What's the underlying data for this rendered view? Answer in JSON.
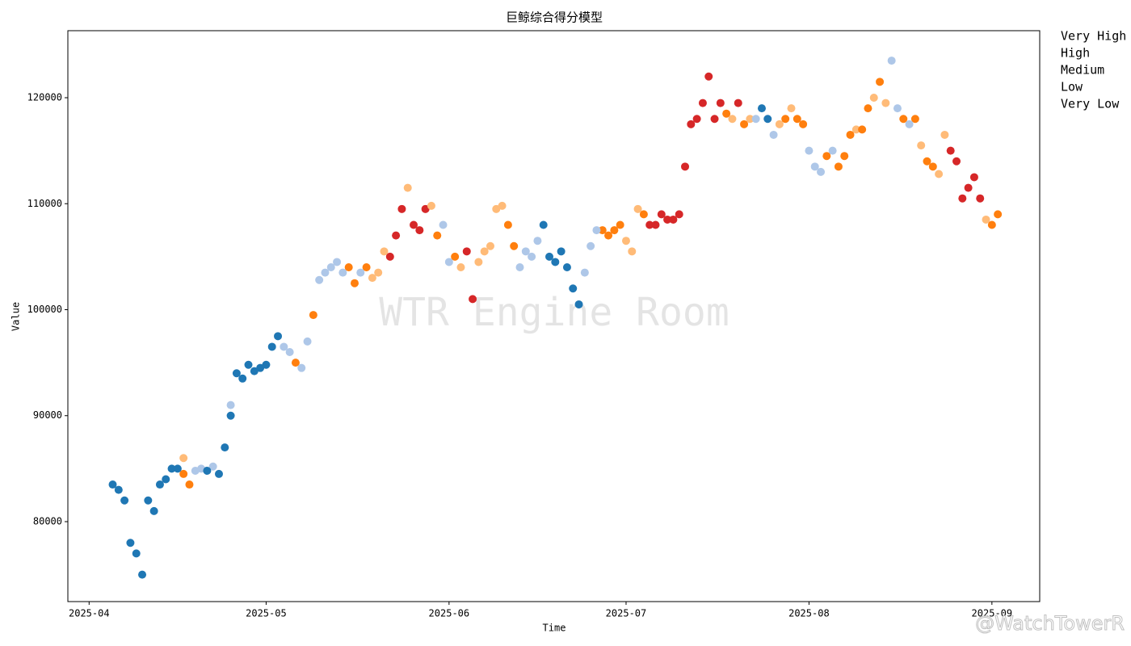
{
  "chart_data": {
    "type": "scatter",
    "title": "巨鲸综合得分模型",
    "xlabel": "Time",
    "ylabel": "Value",
    "annotations": [
      "WTR Engine Room",
      "@WatchTowerR"
    ],
    "xlim": [
      20175.4,
      20340.1
    ],
    "ylim": [
      72457,
      126324
    ],
    "xticks": [
      {
        "value": 20179,
        "label": "2025-04"
      },
      {
        "value": 20209,
        "label": "2025-05"
      },
      {
        "value": 20240,
        "label": "2025-06"
      },
      {
        "value": 20270,
        "label": "2025-07"
      },
      {
        "value": 20301,
        "label": "2025-08"
      },
      {
        "value": 20332,
        "label": "2025-09"
      }
    ],
    "yticks": [
      80000,
      90000,
      100000,
      110000,
      120000
    ],
    "grid": false,
    "legend": "outside right",
    "series": [
      {
        "name": "Very High",
        "color": "#d62728",
        "x": [
          20230,
          20231,
          20232,
          20234,
          20235,
          20236,
          20243,
          20244,
          20274,
          20275,
          20276,
          20277,
          20278,
          20279,
          20280,
          20281,
          20282,
          20283,
          20284,
          20285,
          20286,
          20289,
          20325,
          20326,
          20327,
          20328,
          20329,
          20330
        ],
        "values": [
          105000,
          107000,
          109500,
          108000,
          107500,
          109500,
          105500,
          101000,
          108000,
          108000,
          109000,
          108500,
          108500,
          109000,
          113500,
          117500,
          118000,
          119500,
          122000,
          118000,
          119500,
          119500,
          115000,
          114000,
          110500,
          111500,
          112500,
          110500
        ]
      },
      {
        "name": "High",
        "color": "#ffbb78",
        "x": [
          20195,
          20227,
          20228,
          20229,
          20233,
          20237,
          20242,
          20245,
          20246,
          20247,
          20248,
          20249,
          20270,
          20271,
          20272,
          20288,
          20291,
          20296,
          20298,
          20309,
          20312,
          20314,
          20320,
          20323,
          20324,
          20331
        ],
        "values": [
          86000,
          103000,
          103500,
          105500,
          111500,
          109800,
          104000,
          104500,
          105500,
          106000,
          109500,
          109800,
          106500,
          105500,
          109500,
          118000,
          118000,
          117500,
          119000,
          117000,
          120000,
          119500,
          115500,
          112800,
          116500,
          108500
        ]
      },
      {
        "name": "Medium",
        "color": "#ff7f0e",
        "x": [
          20195,
          20196,
          20214,
          20217,
          20223,
          20224,
          20226,
          20238,
          20241,
          20250,
          20251,
          20266,
          20267,
          20268,
          20269,
          20273,
          20287,
          20290,
          20297,
          20299,
          20300,
          20304,
          20306,
          20307,
          20308,
          20310,
          20311,
          20313,
          20317,
          20319,
          20321,
          20322,
          20332,
          20333
        ],
        "values": [
          84500,
          83500,
          95000,
          99500,
          104000,
          102500,
          104000,
          107000,
          105000,
          108000,
          106000,
          107500,
          107000,
          107500,
          108000,
          109000,
          118500,
          117500,
          118000,
          118000,
          117500,
          114500,
          113500,
          114500,
          116500,
          117000,
          119000,
          121500,
          118000,
          118000,
          114000,
          113500,
          108000,
          109000
        ]
      },
      {
        "name": "Low",
        "color": "#aec7e8",
        "x": [
          20197,
          20198,
          20200,
          20203,
          20212,
          20213,
          20215,
          20216,
          20218,
          20219,
          20220,
          20221,
          20222,
          20225,
          20239,
          20240,
          20252,
          20253,
          20254,
          20255,
          20263,
          20264,
          20265,
          20292,
          20295,
          20301,
          20302,
          20303,
          20305,
          20315,
          20316,
          20318
        ],
        "values": [
          84800,
          85000,
          85200,
          91000,
          96500,
          96000,
          94500,
          97000,
          102800,
          103500,
          104000,
          104500,
          103500,
          103500,
          108000,
          104500,
          104000,
          105500,
          105000,
          106500,
          103500,
          106000,
          107500,
          118000,
          116500,
          115000,
          113500,
          113000,
          115000,
          123500,
          119000,
          117500
        ]
      },
      {
        "name": "Very Low",
        "color": "#1f77b4",
        "x": [
          20183,
          20184,
          20185,
          20186,
          20187,
          20188,
          20189,
          20190,
          20191,
          20192,
          20193,
          20194,
          20199,
          20201,
          20202,
          20203,
          20204,
          20205,
          20206,
          20207,
          20208,
          20209,
          20210,
          20211,
          20256,
          20257,
          20258,
          20259,
          20260,
          20261,
          20262,
          20293,
          20294
        ],
        "values": [
          83500,
          83000,
          82000,
          78000,
          77000,
          75000,
          82000,
          81000,
          83500,
          84000,
          85000,
          85000,
          84800,
          84500,
          87000,
          90000,
          94000,
          93500,
          94800,
          94200,
          94500,
          94800,
          96500,
          97500,
          108000,
          105000,
          104500,
          105500,
          104000,
          102000,
          100500,
          119000,
          118000
        ]
      }
    ]
  }
}
